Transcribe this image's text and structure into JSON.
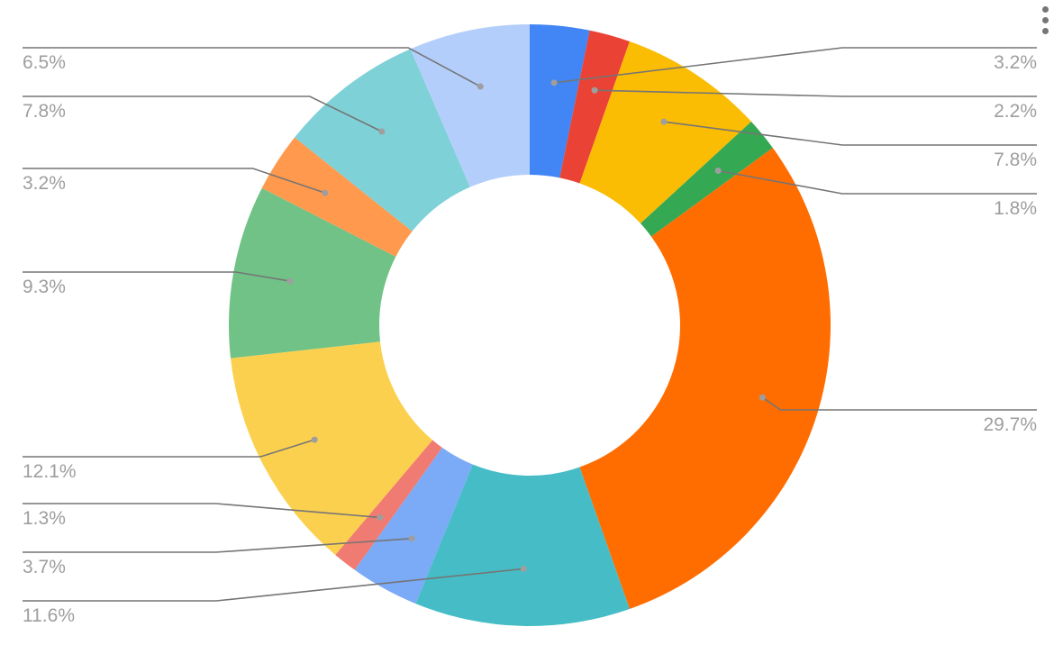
{
  "menu_icon": "more-vert-icon",
  "chart_data": {
    "type": "pie",
    "donut": true,
    "title": "",
    "slices": [
      {
        "value": 3.2,
        "label": "3.2%",
        "color": "#4285f4"
      },
      {
        "value": 2.2,
        "label": "2.2%",
        "color": "#ea4335"
      },
      {
        "value": 7.8,
        "label": "7.8%",
        "color": "#fbbc04"
      },
      {
        "value": 1.8,
        "label": "1.8%",
        "color": "#34a853"
      },
      {
        "value": 29.7,
        "label": "29.7%",
        "color": "#ff6d01"
      },
      {
        "value": 11.6,
        "label": "11.6%",
        "color": "#46bdc6"
      },
      {
        "value": 3.7,
        "label": "3.7%",
        "color": "#7baaf7"
      },
      {
        "value": 1.3,
        "label": "1.3%",
        "color": "#f07b72"
      },
      {
        "value": 12.1,
        "label": "12.1%",
        "color": "#fcd04f"
      },
      {
        "value": 9.3,
        "label": "9.3%",
        "color": "#71c287"
      },
      {
        "value": 3.2,
        "label": "3.2%",
        "color": "#ff994d"
      },
      {
        "value": 7.8,
        "label": "7.8%",
        "color": "#7ed1d7"
      },
      {
        "value": 6.5,
        "label": "6.5%",
        "color": "#b3cefb"
      }
    ],
    "leader_line_color": "#757575",
    "label_color": "#9e9e9e"
  }
}
